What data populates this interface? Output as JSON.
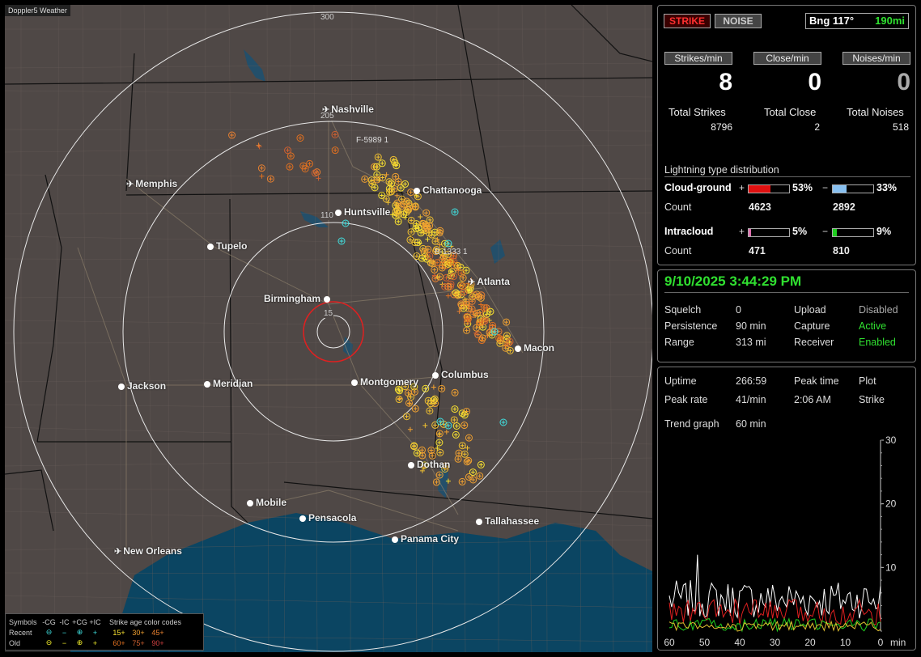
{
  "app_title": "Doppler5 Weather",
  "map": {
    "ring_labels": [
      "300",
      "205",
      "110",
      "15"
    ],
    "cities": [
      {
        "name": "Nashville",
        "kind": "airport"
      },
      {
        "name": "Memphis",
        "kind": "airport"
      },
      {
        "name": "Chattanooga",
        "kind": "city"
      },
      {
        "name": "Huntsville",
        "kind": "city"
      },
      {
        "name": "Tupelo",
        "kind": "city"
      },
      {
        "name": "Atlanta",
        "kind": "airport"
      },
      {
        "name": "Birmingham",
        "kind": "city"
      },
      {
        "name": "Macon",
        "kind": "city"
      },
      {
        "name": "Jackson",
        "kind": "city"
      },
      {
        "name": "Meridian",
        "kind": "city"
      },
      {
        "name": "Montgomery",
        "kind": "city"
      },
      {
        "name": "Columbus",
        "kind": "city"
      },
      {
        "name": "Dothan",
        "kind": "city"
      },
      {
        "name": "Mobile",
        "kind": "city"
      },
      {
        "name": "Pensacola",
        "kind": "city"
      },
      {
        "name": "Tallahassee",
        "kind": "city"
      },
      {
        "name": "Panama City",
        "kind": "city"
      },
      {
        "name": "New Orleans",
        "kind": "airport"
      }
    ],
    "sensor_labels": [
      "F-5989",
      "B-1333"
    ],
    "sensor_counts": [
      "1",
      "1"
    ]
  },
  "legend": {
    "header": {
      "symbols": "Symbols",
      "cg_minus": "-CG",
      "ic_minus": "-IC",
      "cg_plus": "+CG",
      "ic_plus": "+IC",
      "ages": "Strike age color codes"
    },
    "recent": {
      "label": "Recent",
      "ages": [
        "15+",
        "30+",
        "45+"
      ]
    },
    "old": {
      "label": "Old",
      "ages": [
        "60+",
        "75+",
        "90+"
      ]
    }
  },
  "panel1": {
    "strike_button": "STRIKE",
    "noise_button": "NOISE",
    "bearing": "Bng 117°",
    "range": "190mi",
    "strikes_min_label": "Strikes/min",
    "close_min_label": "Close/min",
    "noises_min_label": "Noises/min",
    "strikes_min": "8",
    "close_min": "0",
    "noises_min": "0",
    "total_strikes_label": "Total Strikes",
    "total_close_label": "Total Close",
    "total_noises_label": "Total Noises",
    "total_strikes": "8796",
    "total_close": "2",
    "total_noises": "518",
    "dist_title": "Lightning type distribution",
    "cloud_ground_label": "Cloud-ground",
    "intracloud_label": "Intracloud",
    "count_label": "Count",
    "cg_plus_pct": "53%",
    "cg_minus_pct": "33%",
    "cg_plus_count": "4623",
    "cg_minus_count": "2892",
    "ic_plus_pct": "5%",
    "ic_minus_pct": "9%",
    "ic_plus_count": "471",
    "ic_minus_count": "810",
    "cg_plus_fill": 0.53,
    "cg_minus_fill": 0.33,
    "ic_plus_fill": 0.05,
    "ic_minus_fill": 0.09,
    "colors": {
      "cg_plus": "#e01010",
      "cg_minus": "#88c0f0",
      "ic_plus": "#e070b0",
      "ic_minus": "#20d020"
    }
  },
  "panel2": {
    "datetime": "9/10/2025 3:44:29 PM",
    "squelch_label": "Squelch",
    "squelch": "0",
    "persistence_label": "Persistence",
    "persistence": "90 min",
    "range_label": "Range",
    "range": "313 mi",
    "upload_label": "Upload",
    "upload": "Disabled",
    "capture_label": "Capture",
    "capture": "Active",
    "receiver_label": "Receiver",
    "receiver": "Enabled"
  },
  "panel3": {
    "uptime_label": "Uptime",
    "uptime": "266:59",
    "peak_time_label": "Peak time",
    "peak_time": "2:06 AM",
    "peak_rate_label": "Peak rate",
    "peak_rate": "41/min",
    "plot_label": "Plot",
    "plot": "Strike",
    "trend_label": "Trend graph",
    "trend": "60 min",
    "y_ticks": [
      "30",
      "20",
      "10"
    ],
    "x_ticks": [
      "60",
      "50",
      "40",
      "30",
      "20",
      "10",
      "0"
    ],
    "x_unit": "min"
  }
}
